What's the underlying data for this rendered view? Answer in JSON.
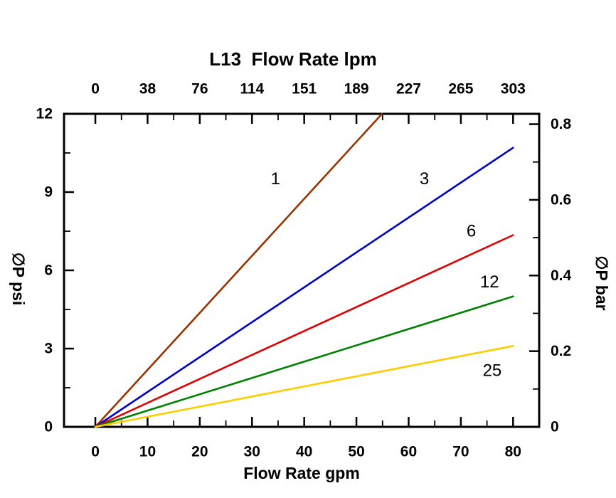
{
  "chart_data": {
    "type": "line",
    "title": "L13  Flow Rate lpm",
    "xlabel": "Flow Rate gpm",
    "ylabel_left": "∅P psi",
    "ylabel_right": "∅P bar",
    "xlim": [
      -6,
      85
    ],
    "ylim": [
      0,
      12
    ],
    "x_ticks_gpm": [
      0,
      10,
      20,
      30,
      40,
      50,
      60,
      70,
      80
    ],
    "x_minor_ticks_gpm": [
      5,
      15,
      25,
      35,
      45,
      55,
      65,
      75
    ],
    "top_tick_labels_lpm": [
      "0",
      "38",
      "76",
      "114",
      "151",
      "189",
      "227",
      "265",
      "303"
    ],
    "y_ticks_psi": [
      0,
      3,
      6,
      9,
      12
    ],
    "y_minor_ticks_psi": [
      1.5,
      4.5,
      7.5,
      10.5
    ],
    "right_ticks_bar": [
      0,
      0.2,
      0.4,
      0.6,
      0.8
    ],
    "right_minor_ticks_bar": [
      0.1,
      0.3,
      0.5,
      0.7
    ],
    "bar_to_psi": 14.5038,
    "axis_color": "#000000",
    "series": [
      {
        "name": "1",
        "color": "#993300",
        "points": [
          [
            0,
            0
          ],
          [
            54.9,
            12
          ]
        ],
        "label_pos": [
          34.5,
          9.5
        ]
      },
      {
        "name": "3",
        "color": "#0000cd",
        "points": [
          [
            0,
            0
          ],
          [
            80,
            10.7
          ]
        ],
        "label_pos": [
          63,
          9.5
        ]
      },
      {
        "name": "6",
        "color": "#e00000",
        "points": [
          [
            0,
            0
          ],
          [
            80,
            7.35
          ]
        ],
        "label_pos": [
          72,
          7.5
        ]
      },
      {
        "name": "12",
        "color": "#008000",
        "points": [
          [
            0,
            0
          ],
          [
            80,
            5.0
          ]
        ],
        "label_pos": [
          75.5,
          5.55
        ]
      },
      {
        "name": "25",
        "color": "#ffcc00",
        "points": [
          [
            0,
            0
          ],
          [
            80,
            3.1
          ]
        ],
        "label_pos": [
          76,
          2.15
        ]
      }
    ]
  }
}
